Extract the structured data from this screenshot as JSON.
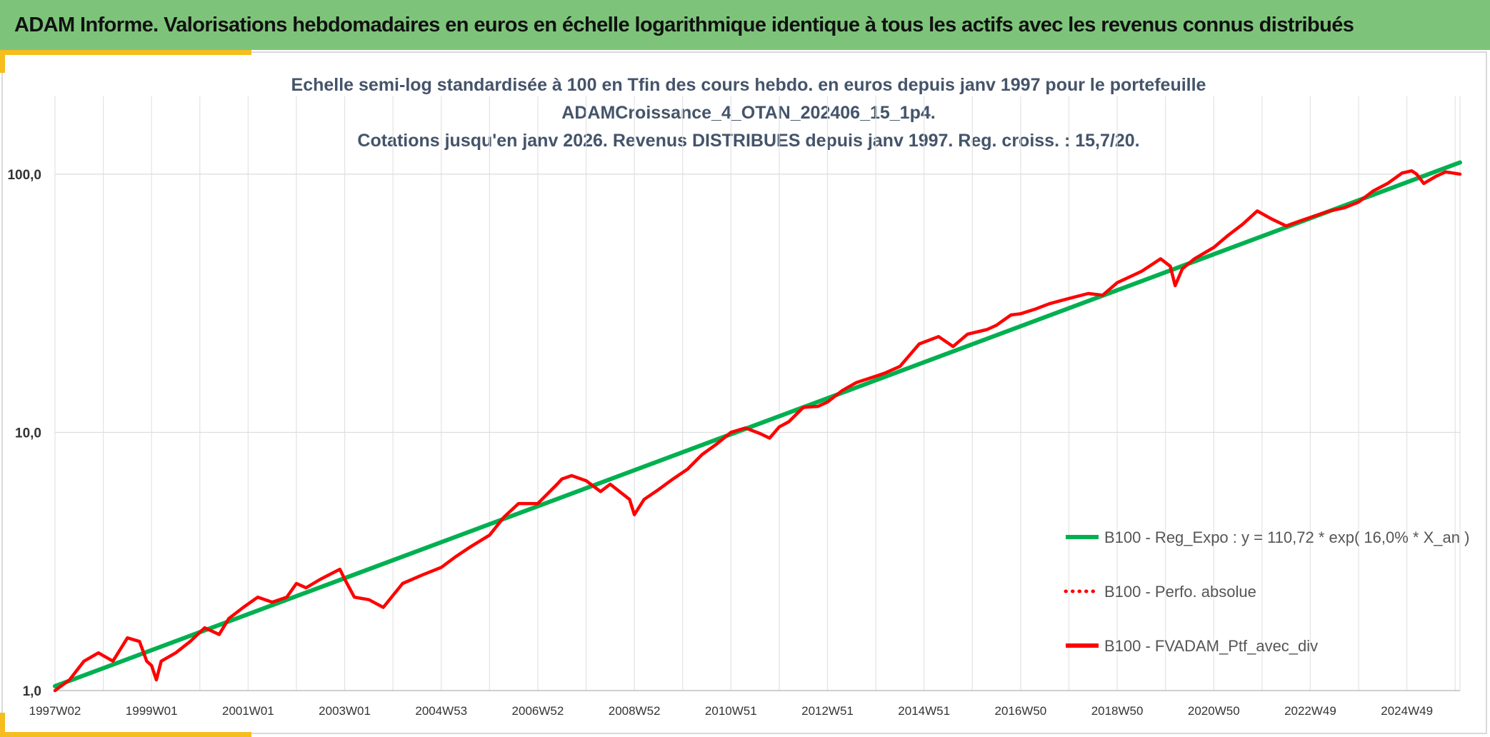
{
  "header": {
    "title": "ADAM Informe. Valorisations hebdomadaires en euros en échelle logarithmique identique à tous les actifs avec les revenus connus distribués"
  },
  "colors": {
    "banner": "#7dc47a",
    "accent": "#f5bd1e",
    "regression": "#00b050",
    "portfolio": "#ff0000",
    "title_text": "#44546a"
  },
  "chart_data": {
    "type": "line",
    "title_lines": [
      "Echelle semi-log standardisée à 100 en Tfin des cours hebdo. en euros depuis janv 1997 pour le portefeuille",
      "ADAMCroissance_4_OTAN_202406_15_1p4.",
      "Cotations jusqu'en janv 2026. Revenus DISTRIBUES depuis janv 1997. Reg. croiss. : 15,7/20."
    ],
    "y_scale": "log",
    "y_range": [
      1,
      200
    ],
    "y_ticks": [
      {
        "value": 1,
        "label": "1,0"
      },
      {
        "value": 10,
        "label": "10,0"
      },
      {
        "value": 100,
        "label": "100,0"
      }
    ],
    "x_range": [
      1997.0,
      2026.1
    ],
    "x_ticks": [
      {
        "value": 1997.0,
        "label": "1997W02"
      },
      {
        "value": 1999.0,
        "label": "1999W01"
      },
      {
        "value": 2001.0,
        "label": "2001W01"
      },
      {
        "value": 2003.0,
        "label": "2003W01"
      },
      {
        "value": 2005.0,
        "label": "2004W53"
      },
      {
        "value": 2007.0,
        "label": "2006W52"
      },
      {
        "value": 2009.0,
        "label": "2008W52"
      },
      {
        "value": 2011.0,
        "label": "2010W51"
      },
      {
        "value": 2013.0,
        "label": "2012W51"
      },
      {
        "value": 2015.0,
        "label": "2014W51"
      },
      {
        "value": 2017.0,
        "label": "2016W50"
      },
      {
        "value": 2019.0,
        "label": "2018W50"
      },
      {
        "value": 2021.0,
        "label": "2020W50"
      },
      {
        "value": 2023.0,
        "label": "2022W49"
      },
      {
        "value": 2025.0,
        "label": "2024W49"
      }
    ],
    "grid": "vertical-and-horizontal",
    "legend_position": "bottom-right",
    "series": [
      {
        "name": "B100 - Reg_Expo : y = 110,72 * exp( 16,0% *  X_an )",
        "style": "solid",
        "x": [
          1997.0,
          2026.1
        ],
        "y": [
          1.04,
          111.0
        ]
      },
      {
        "name": "B100 - Perfo. absolue",
        "style": "dotted",
        "x": [],
        "y": []
      },
      {
        "name": "B100 - FVADAM_Ptf_avec_div",
        "style": "solid",
        "x": [
          1997.0,
          1997.3,
          1997.6,
          1997.9,
          1998.2,
          1998.5,
          1998.75,
          1998.9,
          1999.0,
          1999.1,
          1999.2,
          1999.5,
          1999.8,
          2000.1,
          2000.4,
          2000.6,
          2000.9,
          2001.2,
          2001.5,
          2001.8,
          2002.0,
          2002.2,
          2002.5,
          2002.9,
          2003.0,
          2003.2,
          2003.5,
          2003.8,
          2004.2,
          2004.6,
          2005.0,
          2005.3,
          2005.6,
          2006.0,
          2006.3,
          2006.6,
          2007.0,
          2007.4,
          2007.5,
          2007.7,
          2008.0,
          2008.3,
          2008.5,
          2008.9,
          2009.0,
          2009.2,
          2009.5,
          2009.8,
          2010.1,
          2010.4,
          2010.7,
          2011.0,
          2011.3,
          2011.6,
          2011.8,
          2012.0,
          2012.2,
          2012.5,
          2012.8,
          2013.0,
          2013.3,
          2013.6,
          2014.0,
          2014.2,
          2014.5,
          2014.9,
          2015.3,
          2015.6,
          2015.9,
          2016.3,
          2016.5,
          2016.8,
          2017.0,
          2017.3,
          2017.6,
          2018.0,
          2018.4,
          2018.7,
          2019.0,
          2019.5,
          2019.9,
          2020.1,
          2020.2,
          2020.35,
          2020.6,
          2021.0,
          2021.3,
          2021.6,
          2021.9,
          2022.2,
          2022.5,
          2022.8,
          2023.1,
          2023.4,
          2023.7,
          2024.0,
          2024.3,
          2024.6,
          2024.9,
          2025.1,
          2025.2,
          2025.35,
          2025.6,
          2025.8,
          2026.1
        ],
        "y": [
          1.0,
          1.1,
          1.3,
          1.4,
          1.3,
          1.6,
          1.55,
          1.3,
          1.25,
          1.1,
          1.3,
          1.4,
          1.55,
          1.75,
          1.65,
          1.9,
          2.1,
          2.3,
          2.2,
          2.3,
          2.6,
          2.5,
          2.7,
          2.95,
          2.7,
          2.3,
          2.25,
          2.1,
          2.6,
          2.8,
          3.0,
          3.3,
          3.6,
          4.0,
          4.7,
          5.3,
          5.3,
          6.3,
          6.6,
          6.8,
          6.5,
          5.9,
          6.3,
          5.5,
          4.8,
          5.5,
          6.0,
          6.6,
          7.2,
          8.2,
          9.0,
          10.0,
          10.4,
          9.9,
          9.5,
          10.5,
          11.0,
          12.5,
          12.6,
          13.1,
          14.5,
          15.6,
          16.5,
          17.0,
          18.0,
          22.0,
          23.5,
          21.5,
          24.0,
          25.0,
          26.0,
          28.5,
          28.8,
          30.0,
          31.5,
          33.0,
          34.5,
          34.0,
          38.0,
          42.0,
          47.0,
          44.0,
          37.0,
          43.0,
          47.0,
          52.0,
          58.0,
          64.0,
          72.0,
          67.0,
          63.0,
          66.0,
          69.0,
          72.0,
          74.0,
          78.0,
          86.0,
          92.0,
          101.0,
          103.0,
          100.0,
          92.0,
          98.0,
          102.0,
          100.0
        ]
      }
    ]
  }
}
